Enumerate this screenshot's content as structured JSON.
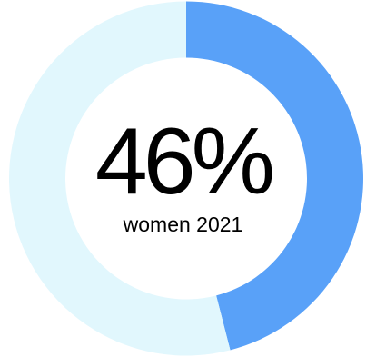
{
  "chart_data": {
    "type": "pie",
    "variant": "donut",
    "slices": [
      {
        "value": 46,
        "color": "#59a1f8"
      },
      {
        "value": 54,
        "color": "#e1f7fd"
      }
    ],
    "center_value": "46%",
    "center_label": "women 2021"
  },
  "colors": {
    "highlight": "#59a1f8",
    "remainder": "#e1f7fd",
    "text": "#000000",
    "background": "#ffffff"
  }
}
